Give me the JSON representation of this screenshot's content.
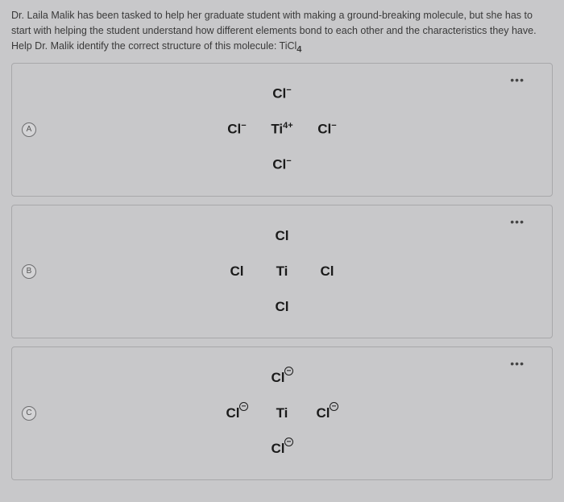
{
  "question": "Dr. Laila Malik has been tasked to help her graduate student with making a ground-breaking molecule, but she has to start with helping the student understand how different elements bond to each other and the characteristics they have. Help Dr. Malik identify the correct structure of this molecule: TiCl",
  "question_sub": "4",
  "menu_glyph": "•••",
  "options": [
    {
      "letter": "A",
      "layout": "ionic",
      "center": {
        "base": "Ti",
        "sup": "4+"
      },
      "ligand": {
        "base": "Cl",
        "sup": "−"
      }
    },
    {
      "letter": "B",
      "layout": "neutral",
      "center": {
        "base": "Ti"
      },
      "ligand": {
        "base": "Cl"
      }
    },
    {
      "letter": "C",
      "layout": "circled",
      "center": {
        "base": "Ti"
      },
      "ligand": {
        "base": "Cl"
      }
    }
  ],
  "style": {
    "bg": "#c8c8ca",
    "border": "#a8a8aa",
    "text": "#3a3a3a",
    "formula": "#1a1a1a"
  }
}
